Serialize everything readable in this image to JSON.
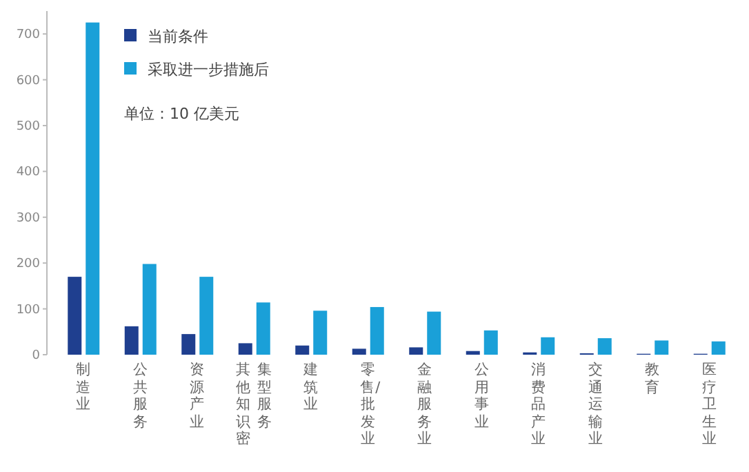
{
  "chart_data": {
    "type": "bar",
    "categories": [
      "制造业",
      "公共服务",
      "资源产业",
      "其他知识密集型服务",
      "建筑业",
      "零售/批发业",
      "金融服务业",
      "公用事业",
      "消费品产业",
      "交通运输业",
      "教育",
      "医疗卫生业"
    ],
    "series": [
      {
        "name": "当前条件",
        "color": "#1f3f8f",
        "values": [
          170,
          62,
          45,
          25,
          20,
          13,
          16,
          8,
          5,
          3,
          2,
          2
        ]
      },
      {
        "name": "采取进一步措施后",
        "color": "#1aa0d8",
        "values": [
          725,
          198,
          170,
          114,
          96,
          104,
          94,
          53,
          38,
          36,
          31,
          29
        ]
      }
    ],
    "ylim": [
      0,
      750
    ],
    "yticks": [
      0,
      100,
      200,
      300,
      400,
      500,
      600,
      700
    ],
    "annotations": [
      "单位：10 亿美元"
    ],
    "legend": "top left",
    "grid": false
  }
}
